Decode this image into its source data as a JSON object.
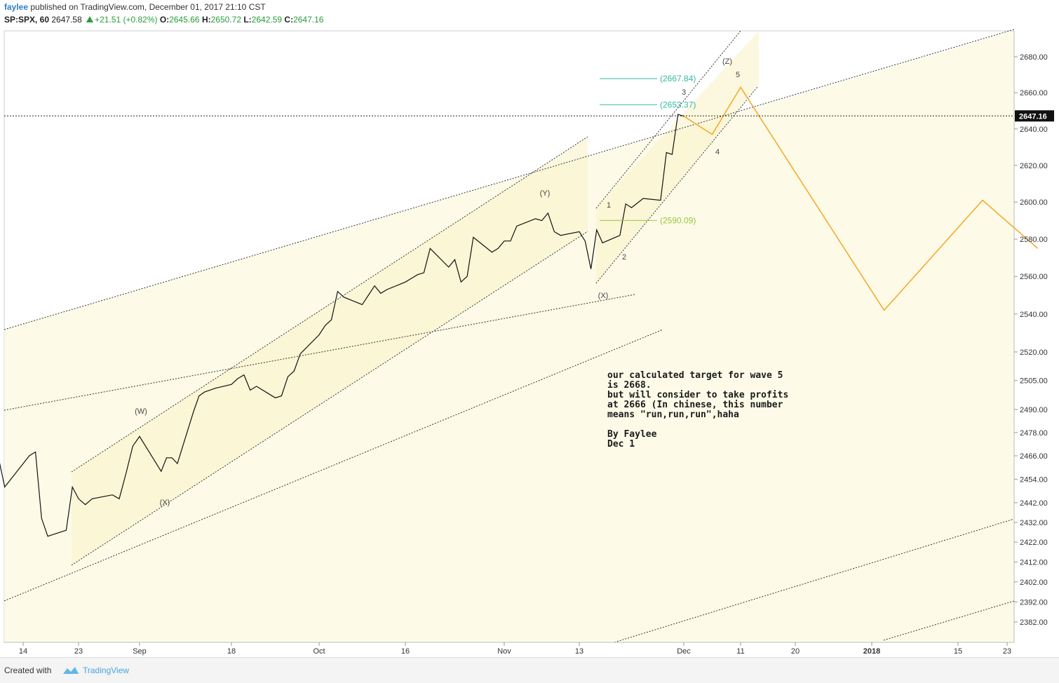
{
  "header": {
    "user": "faylee",
    "published": "published on TradingView.com, December 01, 2017 21:10 CST",
    "symbol": "SP:SPX, 60",
    "last": "2647.58",
    "change": "+21.51 (+0.82%)",
    "o_label": "O:",
    "o_value": "2645.66",
    "h_label": "H:",
    "h_value": "2650.72",
    "l_label": "L:",
    "l_value": "2642.59",
    "c_label": "C:",
    "c_value": "2647.16"
  },
  "footer": {
    "created": "Created with",
    "brand": "TradingView"
  },
  "note": {
    "lines": [
      "our calculated target for wave 5",
      "is 2668.",
      "but will consider to take profits",
      "at 2666 (In chinese, this number",
      "means \"run,run,run\",haha",
      "",
      "By Faylee",
      "Dec 1"
    ]
  },
  "colors": {
    "price_line": "#111111",
    "projection": "#f5a623",
    "fib_teal": "#36b8a0",
    "fib_green": "#9bc53d",
    "channel_fill": "#fcf9de",
    "current_price_tag": "#111111"
  },
  "chart_data": {
    "type": "line",
    "title": "",
    "symbol": "SP:SPX",
    "interval": "60",
    "y_axis": {
      "side": "right",
      "ticks": [
        2680,
        2660,
        2640,
        2620,
        2600,
        2580,
        2560,
        2540,
        2520,
        2505,
        2490,
        2478,
        2466,
        2454,
        2442,
        2432,
        2422,
        2412,
        2402,
        2392,
        2382
      ],
      "tick_labels": [
        "2680.00",
        "2660.00",
        "2640.00",
        "2620.00",
        "2600.00",
        "2580.00",
        "2560.00",
        "2540.00",
        "2520.00",
        "2505.00",
        "2490.00",
        "2478.00",
        "2466.00",
        "2454.00",
        "2442.00",
        "2432.00",
        "2422.00",
        "2412.00",
        "2402.00",
        "2392.00",
        "2382.00"
      ],
      "ylim": [
        2375,
        2690
      ],
      "log_scale": true
    },
    "x_axis": {
      "ticks": [
        {
          "label": "14",
          "date": "2017-08-14"
        },
        {
          "label": "23",
          "date": "2017-08-23"
        },
        {
          "label": "Sep",
          "date": "2017-09-01"
        },
        {
          "label": "18",
          "date": "2017-09-18"
        },
        {
          "label": "Oct",
          "date": "2017-10-02"
        },
        {
          "label": "16",
          "date": "2017-10-16"
        },
        {
          "label": "Nov",
          "date": "2017-11-01"
        },
        {
          "label": "13",
          "date": "2017-11-13"
        },
        {
          "label": "Dec",
          "date": "2017-12-01"
        },
        {
          "label": "11",
          "date": "2017-12-11"
        },
        {
          "label": "20",
          "date": "2017-12-20"
        },
        {
          "label": "2018",
          "date": "2018-01-01",
          "bold": true
        },
        {
          "label": "15",
          "date": "2018-01-15"
        },
        {
          "label": "23",
          "date": "2018-01-23"
        }
      ]
    },
    "current_price": {
      "value": 2647.16,
      "label": "2647.16"
    },
    "series": [
      {
        "kind": "price",
        "points": [
          [
            "2017-08-10",
            2465
          ],
          [
            "2017-08-11",
            2450
          ],
          [
            "2017-08-14",
            2462
          ],
          [
            "2017-08-15",
            2466
          ],
          [
            "2017-08-16",
            2468
          ],
          [
            "2017-08-17",
            2434
          ],
          [
            "2017-08-18",
            2425
          ],
          [
            "2017-08-21",
            2428
          ],
          [
            "2017-08-22",
            2450
          ],
          [
            "2017-08-23",
            2444
          ],
          [
            "2017-08-24",
            2441
          ],
          [
            "2017-08-25",
            2444
          ],
          [
            "2017-08-28",
            2446
          ],
          [
            "2017-08-29",
            2444
          ],
          [
            "2017-08-30",
            2457
          ],
          [
            "2017-08-31",
            2471
          ],
          [
            "2017-09-01",
            2476
          ],
          [
            "2017-09-05",
            2458
          ],
          [
            "2017-09-06",
            2465
          ],
          [
            "2017-09-07",
            2465
          ],
          [
            "2017-09-08",
            2462
          ],
          [
            "2017-09-11",
            2489
          ],
          [
            "2017-09-12",
            2497
          ],
          [
            "2017-09-13",
            2499
          ],
          [
            "2017-09-14",
            2500
          ],
          [
            "2017-09-15",
            2501
          ],
          [
            "2017-09-18",
            2503
          ],
          [
            "2017-09-19",
            2506
          ],
          [
            "2017-09-20",
            2508
          ],
          [
            "2017-09-21",
            2500
          ],
          [
            "2017-09-22",
            2502
          ],
          [
            "2017-09-25",
            2496
          ],
          [
            "2017-09-26",
            2497
          ],
          [
            "2017-09-27",
            2507
          ],
          [
            "2017-09-28",
            2510
          ],
          [
            "2017-09-29",
            2519
          ],
          [
            "2017-10-02",
            2529
          ],
          [
            "2017-10-03",
            2534
          ],
          [
            "2017-10-04",
            2537
          ],
          [
            "2017-10-05",
            2552
          ],
          [
            "2017-10-06",
            2549
          ],
          [
            "2017-10-09",
            2545
          ],
          [
            "2017-10-10",
            2550
          ],
          [
            "2017-10-11",
            2555
          ],
          [
            "2017-10-12",
            2551
          ],
          [
            "2017-10-13",
            2553
          ],
          [
            "2017-10-16",
            2557
          ],
          [
            "2017-10-17",
            2559
          ],
          [
            "2017-10-18",
            2561
          ],
          [
            "2017-10-19",
            2562
          ],
          [
            "2017-10-20",
            2575
          ],
          [
            "2017-10-23",
            2565
          ],
          [
            "2017-10-24",
            2569
          ],
          [
            "2017-10-25",
            2557
          ],
          [
            "2017-10-26",
            2560
          ],
          [
            "2017-10-27",
            2581
          ],
          [
            "2017-10-30",
            2573
          ],
          [
            "2017-10-31",
            2575
          ],
          [
            "2017-11-01",
            2579
          ],
          [
            "2017-11-02",
            2579
          ],
          [
            "2017-11-03",
            2587
          ],
          [
            "2017-11-06",
            2591
          ],
          [
            "2017-11-07",
            2590
          ],
          [
            "2017-11-08",
            2594
          ],
          [
            "2017-11-09",
            2584
          ],
          [
            "2017-11-10",
            2582
          ],
          [
            "2017-11-13",
            2584
          ],
          [
            "2017-11-14",
            2579
          ],
          [
            "2017-11-15",
            2564
          ],
          [
            "2017-11-16",
            2585
          ],
          [
            "2017-11-17",
            2578
          ],
          [
            "2017-11-20",
            2582
          ],
          [
            "2017-11-21",
            2599
          ],
          [
            "2017-11-22",
            2597
          ],
          [
            "2017-11-24",
            2602
          ],
          [
            "2017-11-27",
            2601
          ],
          [
            "2017-11-28",
            2627
          ],
          [
            "2017-11-29",
            2626
          ],
          [
            "2017-11-30",
            2648
          ],
          [
            "2017-12-01",
            2647
          ]
        ]
      },
      {
        "kind": "projection",
        "points": [
          [
            "2017-12-01",
            2647
          ],
          [
            "2017-12-06",
            2637
          ],
          [
            "2017-12-11",
            2663
          ],
          [
            "2018-01-03",
            2542
          ],
          [
            "2018-01-19",
            2601
          ],
          [
            "2018-01-28",
            2575
          ]
        ]
      }
    ],
    "fib_levels": [
      {
        "label": "(2667.84)",
        "value": 2667.84
      },
      {
        "label": "(2653.37)",
        "value": 2653.37
      },
      {
        "label": "(2590.09)",
        "value": 2590.09
      }
    ],
    "wave_labels": [
      "(W)",
      "(X)",
      "(Y)",
      "(X)",
      "(Z)",
      "1",
      "2",
      "3",
      "4",
      "5"
    ]
  }
}
